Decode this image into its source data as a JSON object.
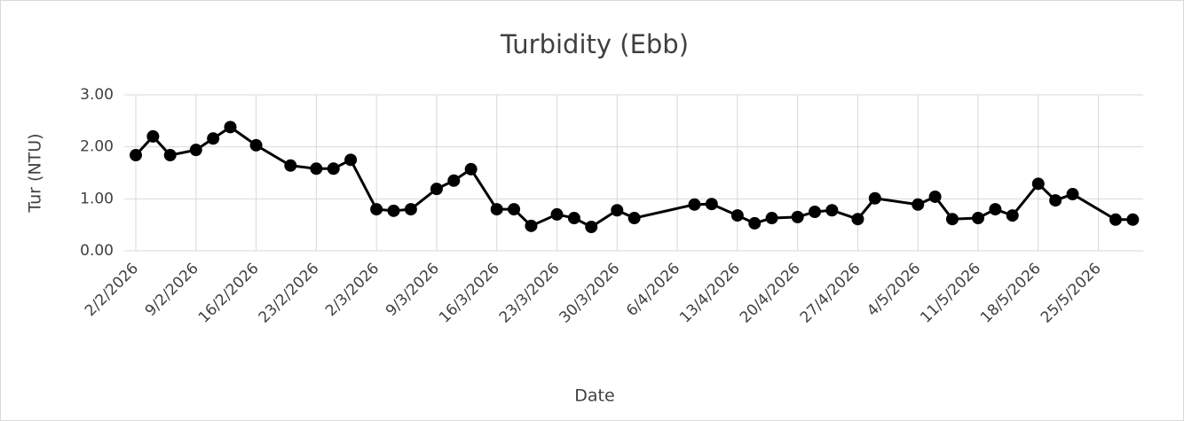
{
  "chart_data": {
    "type": "line",
    "title": "Turbidity (Ebb)",
    "x_label": "Date",
    "y_label": "Tur (NTU)",
    "x": [
      "2/2/2026",
      "4/2/2026",
      "6/2/2026",
      "9/2/2026",
      "11/2/2026",
      "13/2/2026",
      "16/2/2026",
      "20/2/2026",
      "23/2/2026",
      "25/2/2026",
      "27/2/2026",
      "2/3/2026",
      "4/3/2026",
      "6/3/2026",
      "9/3/2026",
      "11/3/2026",
      "13/3/2026",
      "16/3/2026",
      "18/3/2026",
      "20/3/2026",
      "23/3/2026",
      "25/3/2026",
      "27/3/2026",
      "30/3/2026",
      "1/4/2026",
      "8/4/2026",
      "10/4/2026",
      "13/4/2026",
      "15/4/2026",
      "17/4/2026",
      "20/4/2026",
      "22/4/2026",
      "24/4/2026",
      "27/4/2026",
      "29/4/2026",
      "4/5/2026",
      "6/5/2026",
      "8/5/2026",
      "11/5/2026",
      "13/5/2026",
      "15/5/2026",
      "18/5/2026",
      "20/5/2026",
      "22/5/2026",
      "27/5/2026",
      "29/5/2026"
    ],
    "series": [
      {
        "name": "Turbidity",
        "color": "#000000",
        "values": [
          1.84,
          2.2,
          1.84,
          1.94,
          2.16,
          2.38,
          2.03,
          1.64,
          1.58,
          1.58,
          1.75,
          0.8,
          0.77,
          0.8,
          1.19,
          1.35,
          1.57,
          0.8,
          0.8,
          0.48,
          0.7,
          0.63,
          0.46,
          0.78,
          0.63,
          0.89,
          0.9,
          0.68,
          0.53,
          0.63,
          0.65,
          0.75,
          0.78,
          0.61,
          1.01,
          0.89,
          1.04,
          0.61,
          0.63,
          0.8,
          0.68,
          1.29,
          0.97,
          1.09,
          0.6,
          0.6
        ]
      }
    ],
    "xlim": [
      "2/2/2026",
      "30/5/2026"
    ],
    "xticks": [
      "2/2/2026",
      "9/2/2026",
      "16/2/2026",
      "23/2/2026",
      "2/3/2026",
      "9/3/2026",
      "16/3/2026",
      "23/3/2026",
      "30/3/2026",
      "6/4/2026",
      "13/4/2026",
      "20/4/2026",
      "27/4/2026",
      "4/5/2026",
      "11/5/2026",
      "18/5/2026",
      "25/5/2026"
    ],
    "ylim": [
      0,
      3
    ],
    "yticks": [
      {
        "value": 0,
        "label": "0.00"
      },
      {
        "value": 1,
        "label": "1.00"
      },
      {
        "value": 2,
        "label": "2.00"
      },
      {
        "value": 3,
        "label": "3.00"
      }
    ],
    "grid": true
  }
}
